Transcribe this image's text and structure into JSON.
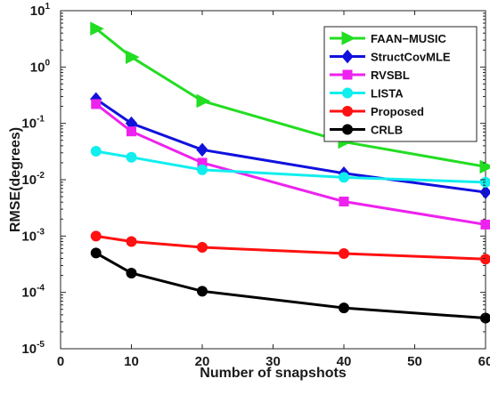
{
  "chart_data": {
    "type": "line",
    "title": "",
    "xlabel": "Number of snapshots",
    "ylabel": "RMSE(degrees)",
    "xlim": [
      0,
      60
    ],
    "ylim": [
      1e-05,
      10
    ],
    "yscale": "log",
    "xticks": [
      0,
      10,
      20,
      30,
      40,
      50,
      60
    ],
    "ytick_exponents": [
      -5,
      -4,
      -3,
      -2,
      -1,
      0,
      1
    ],
    "ytick_base": "10",
    "grid": false,
    "legend_position": "top-right",
    "x": [
      5,
      10,
      20,
      40,
      60
    ],
    "series": [
      {
        "name": "FAAN−MUSIC",
        "color": "#22dd22",
        "marker": "triangle-right",
        "values": [
          4.8,
          1.5,
          0.25,
          0.047,
          0.017
        ]
      },
      {
        "name": "StructCovMLE",
        "color": "#1111dd",
        "marker": "diamond",
        "values": [
          0.27,
          0.1,
          0.034,
          0.013,
          0.006
        ]
      },
      {
        "name": "RVSBL",
        "color": "#ee22ee",
        "marker": "square",
        "values": [
          0.22,
          0.072,
          0.02,
          0.0041,
          0.0016
        ]
      },
      {
        "name": "LISTA",
        "color": "#11eeee",
        "marker": "circle",
        "values": [
          0.032,
          0.025,
          0.015,
          0.011,
          0.009
        ]
      },
      {
        "name": "Proposed",
        "color": "#ff1111",
        "marker": "circle",
        "values": [
          0.001,
          0.0008,
          0.00063,
          0.00049,
          0.00039
        ]
      },
      {
        "name": "CRLB",
        "color": "#000000",
        "marker": "circle",
        "values": [
          0.0005,
          0.00022,
          0.000105,
          5.3e-05,
          3.5e-05
        ]
      }
    ]
  }
}
